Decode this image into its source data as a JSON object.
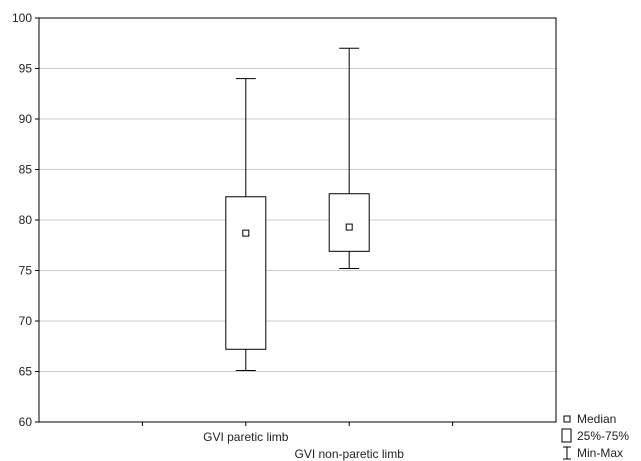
{
  "chart_data": {
    "type": "box",
    "categories": [
      "GVI paretic limb",
      "GVI non-paretic limb"
    ],
    "boxes": [
      {
        "median": 78.7,
        "q1": 67.2,
        "q3": 82.3,
        "min": 65.1,
        "max": 94.0
      },
      {
        "median": 79.3,
        "q1": 76.9,
        "q3": 82.6,
        "min": 75.2,
        "max": 97.0
      }
    ],
    "ylim": [
      60,
      100
    ],
    "yticks": [
      60,
      65,
      70,
      75,
      80,
      85,
      90,
      95,
      100
    ],
    "grid": true,
    "legend_position": "bottom-right",
    "legend": [
      "Median",
      "25%-75%",
      "Min-Max"
    ],
    "colors": {
      "stroke": "#000000",
      "grid": "#cccccc",
      "fill": "#ffffff"
    }
  }
}
